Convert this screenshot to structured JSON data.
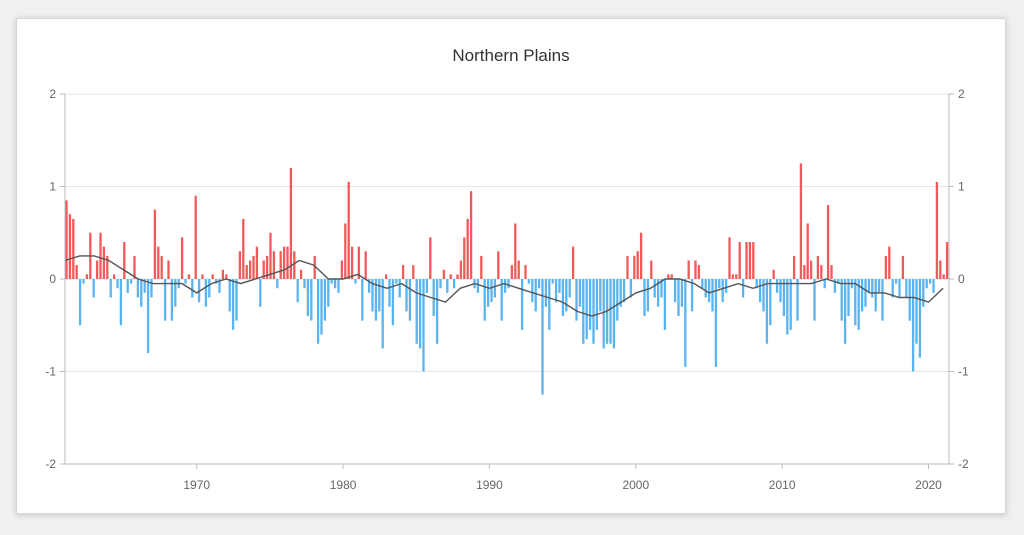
{
  "chart_data": {
    "type": "bar",
    "title": "Northern Plains",
    "xlabel": "",
    "ylabel": "",
    "xlim": [
      1961,
      2021.4
    ],
    "ylim": [
      -2,
      2
    ],
    "yticks": [
      -2,
      -1,
      0,
      1,
      2
    ],
    "ytick_labels": [
      "-2",
      "-1",
      "0",
      "1",
      "2"
    ],
    "xticks": [
      1970,
      1980,
      1990,
      2000,
      2010,
      2020
    ],
    "xtick_labels": [
      "1970",
      "1980",
      "1990",
      "2000",
      "2010",
      "2020"
    ],
    "grid": true,
    "legend": "none",
    "colors": {
      "positive": "#f15a5a",
      "negative": "#5ab4f0",
      "trend": "#555555",
      "grid": "#e6e6e6",
      "axis": "#bbbbbb"
    },
    "period": "quarterly",
    "start_year": 1961.0,
    "values": [
      0.85,
      0.7,
      0.65,
      0.15,
      -0.5,
      -0.05,
      0.05,
      0.5,
      -0.2,
      0.2,
      0.5,
      0.35,
      0.25,
      -0.2,
      0.05,
      -0.1,
      -0.5,
      0.4,
      -0.15,
      -0.05,
      0.25,
      -0.2,
      -0.3,
      -0.15,
      -0.8,
      -0.2,
      0.75,
      0.35,
      0.25,
      -0.45,
      0.2,
      -0.45,
      -0.3,
      -0.1,
      0.45,
      -0.05,
      0.05,
      -0.2,
      0.9,
      -0.25,
      0.05,
      -0.3,
      -0.2,
      0.05,
      -0.05,
      -0.15,
      0.1,
      0.05,
      -0.35,
      -0.55,
      -0.45,
      0.3,
      0.65,
      0.15,
      0.2,
      0.25,
      0.35,
      -0.3,
      0.2,
      0.25,
      0.5,
      0.3,
      -0.1,
      0.3,
      0.35,
      0.35,
      1.2,
      0.3,
      -0.25,
      0.1,
      -0.1,
      -0.4,
      -0.45,
      0.25,
      -0.7,
      -0.6,
      -0.45,
      -0.3,
      -0.05,
      -0.1,
      -0.15,
      0.2,
      0.6,
      1.05,
      0.35,
      -0.05,
      0.35,
      -0.45,
      0.3,
      -0.15,
      -0.35,
      -0.45,
      -0.35,
      -0.75,
      0.05,
      -0.3,
      -0.5,
      -0.05,
      -0.2,
      0.15,
      -0.35,
      -0.45,
      0.15,
      -0.7,
      -0.75,
      -1.0,
      -0.15,
      0.45,
      -0.4,
      -0.7,
      -0.1,
      0.1,
      -0.15,
      0.05,
      -0.1,
      0.05,
      0.2,
      0.45,
      0.65,
      0.95,
      -0.1,
      -0.15,
      0.25,
      -0.45,
      -0.3,
      -0.25,
      -0.2,
      0.3,
      -0.45,
      -0.15,
      -0.1,
      0.15,
      0.6,
      0.2,
      -0.55,
      0.15,
      -0.05,
      -0.25,
      -0.35,
      -0.1,
      -1.25,
      -0.3,
      -0.55,
      -0.05,
      -0.25,
      -0.15,
      -0.4,
      -0.35,
      -0.2,
      0.35,
      -0.45,
      -0.3,
      -0.7,
      -0.65,
      -0.55,
      -0.7,
      -0.55,
      -0.35,
      -0.75,
      -0.7,
      -0.7,
      -0.75,
      -0.45,
      -0.3,
      -0.25,
      0.25,
      -0.2,
      0.25,
      0.3,
      0.5,
      -0.4,
      -0.35,
      0.2,
      -0.2,
      -0.3,
      -0.2,
      -0.55,
      0.05,
      0.05,
      -0.25,
      -0.4,
      -0.3,
      -0.95,
      0.2,
      -0.35,
      0.2,
      0.15,
      -0.1,
      -0.2,
      -0.25,
      -0.35,
      -0.95,
      -0.1,
      -0.25,
      -0.15,
      0.45,
      0.05,
      0.05,
      0.4,
      -0.2,
      0.4,
      0.4,
      0.4,
      -0.1,
      -0.25,
      -0.35,
      -0.7,
      -0.5,
      0.1,
      -0.15,
      -0.25,
      -0.4,
      -0.6,
      -0.55,
      0.25,
      -0.45,
      1.25,
      0.15,
      0.6,
      0.2,
      -0.45,
      0.25,
      0.15,
      -0.1,
      0.8,
      0.15,
      -0.15,
      -0.05,
      -0.45,
      -0.7,
      -0.4,
      -0.1,
      -0.5,
      -0.55,
      -0.35,
      -0.3,
      -0.15,
      -0.2,
      -0.35,
      -0.15,
      -0.45,
      0.25,
      0.35,
      -0.2,
      -0.05,
      -0.2,
      0.25,
      -0.2,
      -0.45,
      -1.0,
      -0.7,
      -0.85,
      -0.3,
      -0.1,
      -0.05,
      -0.15,
      1.05,
      0.2,
      0.05,
      0.4
    ],
    "trend": {
      "x": [
        1961,
        1962,
        1963,
        1964,
        1965,
        1966,
        1967,
        1968,
        1969,
        1970,
        1971,
        1972,
        1973,
        1974,
        1975,
        1976,
        1977,
        1978,
        1979,
        1980,
        1981,
        1982,
        1983,
        1984,
        1985,
        1986,
        1987,
        1988,
        1989,
        1990,
        1991,
        1992,
        1993,
        1994,
        1995,
        1996,
        1997,
        1998,
        1999,
        2000,
        2001,
        2002,
        2003,
        2004,
        2005,
        2006,
        2007,
        2008,
        2009,
        2010,
        2011,
        2012,
        2013,
        2014,
        2015,
        2016,
        2017,
        2018,
        2019,
        2020,
        2021
      ],
      "y": [
        0.2,
        0.25,
        0.25,
        0.2,
        0.1,
        0.0,
        -0.05,
        -0.05,
        -0.05,
        -0.15,
        -0.05,
        0.0,
        -0.05,
        0.0,
        0.05,
        0.1,
        0.2,
        0.15,
        0.0,
        0.0,
        0.05,
        -0.05,
        -0.1,
        -0.05,
        -0.15,
        -0.2,
        -0.25,
        -0.1,
        -0.05,
        -0.1,
        -0.05,
        -0.1,
        -0.15,
        -0.2,
        -0.25,
        -0.35,
        -0.4,
        -0.35,
        -0.25,
        -0.15,
        -0.1,
        0.0,
        0.0,
        -0.05,
        -0.15,
        -0.1,
        -0.05,
        -0.1,
        -0.05,
        -0.05,
        -0.05,
        -0.05,
        0.0,
        -0.05,
        -0.05,
        -0.15,
        -0.15,
        -0.2,
        -0.2,
        -0.25,
        -0.1
      ]
    }
  }
}
